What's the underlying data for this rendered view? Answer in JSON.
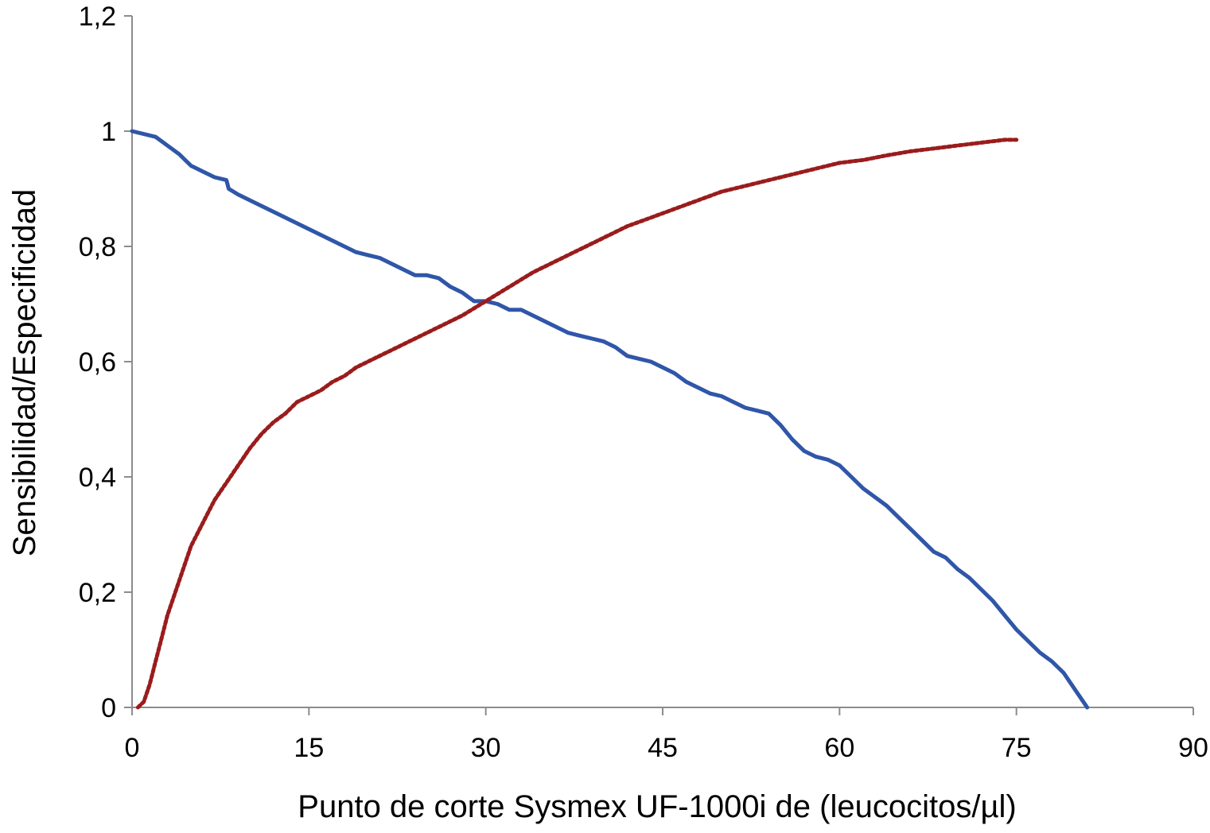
{
  "chart_data": {
    "type": "line",
    "title": "",
    "xlabel": "Punto de corte Sysmex UF-1000i de (leucocitos/µl)",
    "ylabel": "Sensibilidad/Especificidad",
    "xlim": [
      0,
      90
    ],
    "ylim": [
      0,
      1.2
    ],
    "x_ticks": [
      "0",
      "15",
      "30",
      "45",
      "60",
      "75",
      "90"
    ],
    "x_tick_values": [
      0,
      15,
      30,
      45,
      60,
      75,
      90
    ],
    "y_ticks": [
      "0",
      "0,2",
      "0,4",
      "0,6",
      "0,8",
      "1",
      "1,2"
    ],
    "y_tick_values": [
      0,
      0.2,
      0.4,
      0.6,
      0.8,
      1.0,
      1.2
    ],
    "grid": false,
    "legend": "none",
    "series": [
      {
        "color": "#2f56a8",
        "style": "line",
        "x": [
          0,
          2,
          3,
          4,
          5,
          6,
          7,
          8,
          8.2,
          9,
          10,
          11,
          12,
          13,
          14,
          15,
          16,
          17,
          18,
          19,
          20,
          21,
          22,
          23,
          24,
          25,
          26,
          27,
          28,
          29,
          30,
          31,
          32,
          33,
          34,
          35,
          36,
          37,
          38,
          39,
          40,
          41,
          42,
          43,
          44,
          45,
          46,
          47,
          48,
          49,
          50,
          51,
          52,
          53,
          54,
          55,
          56,
          57,
          58,
          59,
          60,
          61,
          62,
          63,
          64,
          65,
          66,
          67,
          68,
          69,
          70,
          71,
          72,
          73,
          74,
          75,
          76,
          77,
          78,
          79,
          80,
          81
        ],
        "y": [
          1.0,
          0.99,
          0.975,
          0.96,
          0.94,
          0.93,
          0.92,
          0.915,
          0.9,
          0.89,
          0.88,
          0.87,
          0.86,
          0.85,
          0.84,
          0.83,
          0.82,
          0.81,
          0.8,
          0.79,
          0.785,
          0.78,
          0.77,
          0.76,
          0.75,
          0.75,
          0.745,
          0.73,
          0.72,
          0.705,
          0.705,
          0.7,
          0.69,
          0.69,
          0.68,
          0.67,
          0.66,
          0.65,
          0.645,
          0.64,
          0.635,
          0.625,
          0.61,
          0.605,
          0.6,
          0.59,
          0.58,
          0.565,
          0.555,
          0.545,
          0.54,
          0.53,
          0.52,
          0.515,
          0.51,
          0.49,
          0.465,
          0.445,
          0.435,
          0.43,
          0.42,
          0.4,
          0.38,
          0.365,
          0.35,
          0.33,
          0.31,
          0.29,
          0.27,
          0.26,
          0.24,
          0.225,
          0.205,
          0.185,
          0.16,
          0.135,
          0.115,
          0.095,
          0.08,
          0.06,
          0.03,
          0.0
        ]
      },
      {
        "color": "#9a1c1c",
        "style": "dotted",
        "x": [
          0.5,
          1,
          1.5,
          2,
          2.5,
          3,
          3.5,
          4,
          4.5,
          5,
          5.5,
          6,
          6.5,
          7,
          7.5,
          8,
          9,
          10,
          11,
          12,
          13,
          14,
          15,
          16,
          17,
          18,
          19,
          20,
          22,
          24,
          26,
          28,
          30,
          32,
          34,
          36,
          38,
          40,
          42,
          44,
          46,
          48,
          50,
          52,
          54,
          56,
          58,
          60,
          62,
          64,
          66,
          68,
          70,
          72,
          74,
          75
        ],
        "y": [
          0.0,
          0.01,
          0.04,
          0.08,
          0.12,
          0.16,
          0.19,
          0.22,
          0.25,
          0.28,
          0.3,
          0.32,
          0.34,
          0.36,
          0.375,
          0.39,
          0.42,
          0.45,
          0.475,
          0.495,
          0.51,
          0.53,
          0.54,
          0.55,
          0.565,
          0.575,
          0.59,
          0.6,
          0.62,
          0.64,
          0.66,
          0.68,
          0.705,
          0.73,
          0.755,
          0.775,
          0.795,
          0.815,
          0.835,
          0.85,
          0.865,
          0.88,
          0.895,
          0.905,
          0.915,
          0.925,
          0.935,
          0.945,
          0.95,
          0.958,
          0.965,
          0.97,
          0.975,
          0.98,
          0.985,
          0.985
        ]
      }
    ]
  }
}
